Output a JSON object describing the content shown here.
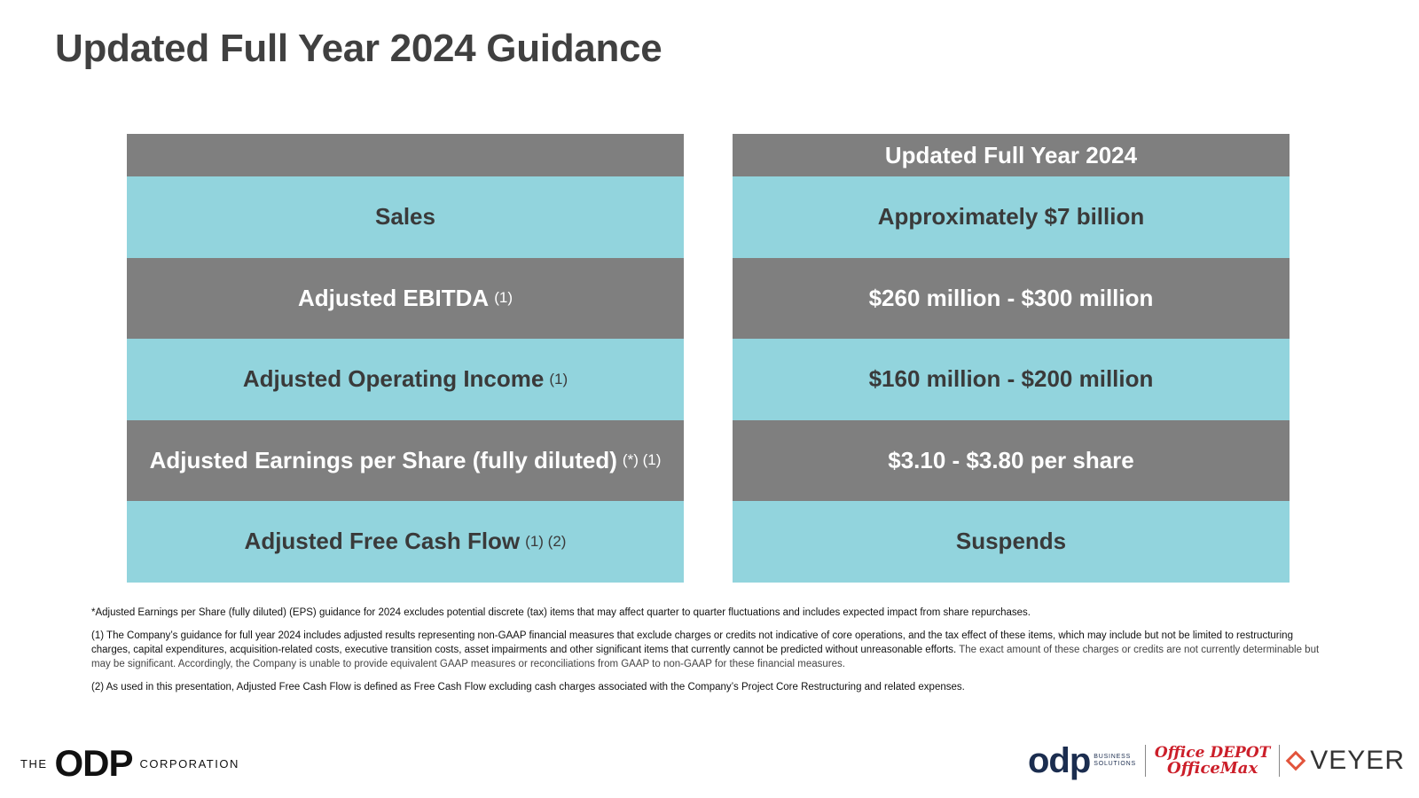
{
  "title": "Updated Full Year 2024 Guidance",
  "table": {
    "left_header": "",
    "right_header": "Updated Full Year 2024",
    "rows": [
      {
        "metric": "Sales",
        "note": "",
        "value": "Approximately $7 billion"
      },
      {
        "metric": "Adjusted EBITDA",
        "note": "(1)",
        "value": "$260 million - $300 million"
      },
      {
        "metric": "Adjusted Operating Income",
        "note": "(1)",
        "value": "$160 million - $200 million"
      },
      {
        "metric": "Adjusted Earnings per Share (fully diluted)",
        "note": "(*) (1)",
        "value": "$3.10 - $3.80 per share"
      },
      {
        "metric": "Adjusted Free Cash Flow",
        "note": "(1) (2)",
        "value": "Suspends"
      }
    ]
  },
  "footnotes": {
    "star": "*Adjusted Earnings per Share (fully diluted) (EPS) guidance for 2024 excludes potential discrete (tax) items that may affect quarter to quarter fluctuations and includes expected impact from share repurchases.",
    "one_main": "(1) The Company’s guidance for full year 2024 includes adjusted results representing non-GAAP financial measures that exclude charges or credits not indicative of core operations, and the tax effect of these items, which may include but not be limited to restructuring charges, capital expenditures, acquisition-related costs, executive transition costs, asset impairments and other significant items that currently cannot be predicted without unreasonable efforts.",
    "one_tail": "The exact amount of these charges or credits are not currently determinable but may be significant. Accordingly, the Company is unable to provide equivalent GAAP measures or reconciliations from GAAP to non-GAAP for these financial measures.",
    "two": "(2) As used in this presentation, Adjusted Free Cash Flow is defined as Free Cash Flow excluding cash charges associated with the Company’s Project Core Restructuring and related expenses."
  },
  "logos": {
    "odp_corp_pre": "THE",
    "odp_corp_mark": "ODP",
    "odp_corp_post": "CORPORATION",
    "odp_bs_mark": "odp",
    "odp_bs_line1": "BUSINESS",
    "odp_bs_line2": "SOLUTIONS",
    "office_depot": "Office DEPOT",
    "officemax": "OfficeMax",
    "veyer": "VEYER"
  },
  "colors": {
    "teal": "#92d4dd",
    "gray": "#7f7f7f",
    "title": "#404040",
    "officedepot_red": "#cc1f2a",
    "veyer_accent": "#e2543c"
  }
}
